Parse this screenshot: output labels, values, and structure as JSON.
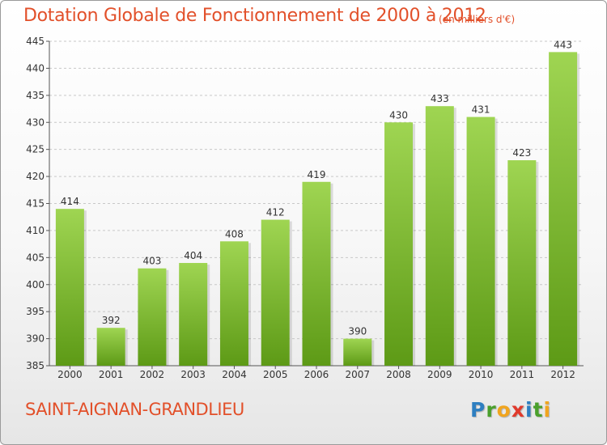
{
  "title": "Dotation Globale de Fonctionnement de 2000 à 2012",
  "unit": "(en milliers d'€)",
  "commune": "SAINT-AIGNAN-GRANDLIEU",
  "logo": {
    "letters": [
      {
        "char": "P",
        "color": "#2e7fc1"
      },
      {
        "char": "r",
        "color": "#4aa02c"
      },
      {
        "char": "o",
        "color": "#f1a51f"
      },
      {
        "char": "x",
        "color": "#e03a2c"
      },
      {
        "char": "i",
        "color": "#2e7fc1"
      },
      {
        "char": "t",
        "color": "#4aa02c"
      },
      {
        "char": "i",
        "color": "#f1a51f"
      }
    ]
  },
  "colors": {
    "bar_top": "#9fd552",
    "bar_bottom": "#5d9a16",
    "axis": "#555555",
    "grid": "#c8c8c8",
    "text": "#333333"
  },
  "chart_data": {
    "type": "bar",
    "categories": [
      "2000",
      "2001",
      "2002",
      "2003",
      "2004",
      "2005",
      "2006",
      "2007",
      "2008",
      "2009",
      "2010",
      "2011",
      "2012"
    ],
    "values": [
      414,
      392,
      403,
      404,
      408,
      412,
      419,
      390,
      430,
      433,
      431,
      423,
      443
    ],
    "ylim": [
      385,
      445
    ],
    "yticks": [
      385,
      390,
      395,
      400,
      405,
      410,
      415,
      420,
      425,
      430,
      435,
      440,
      445
    ],
    "grid": true,
    "data_labels": true
  }
}
